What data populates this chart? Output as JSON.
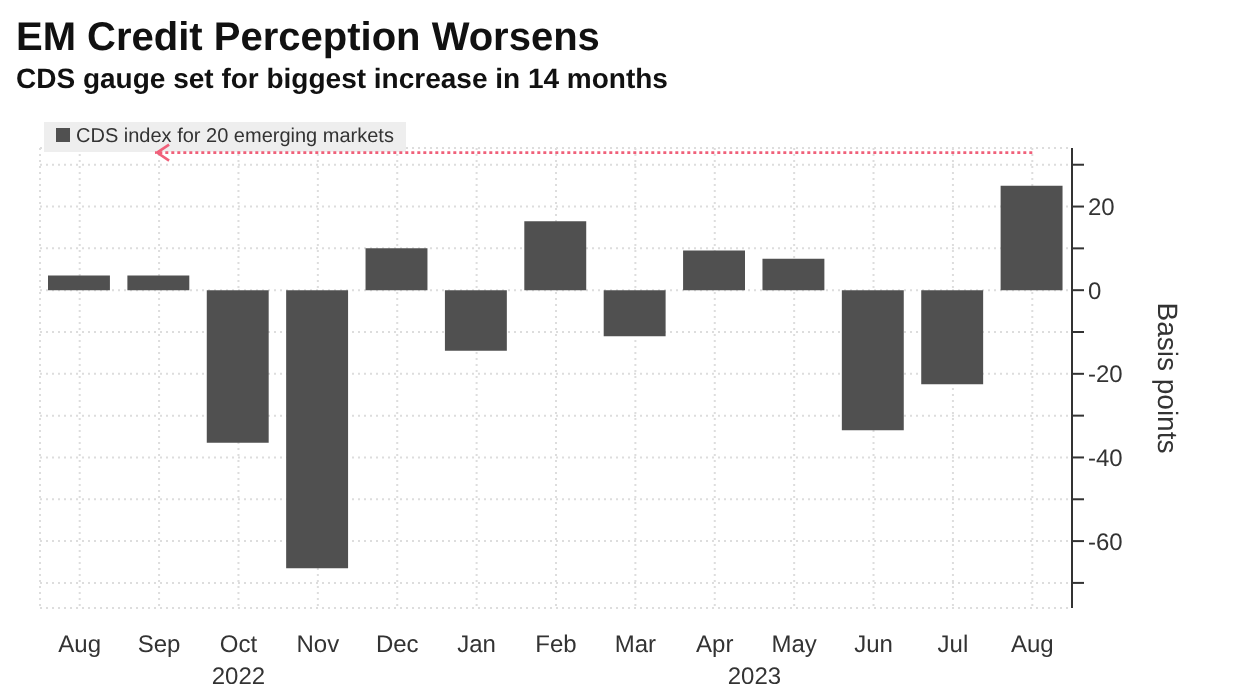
{
  "chart_data": {
    "type": "bar",
    "title": "EM Credit Perception Worsens",
    "subtitle": "CDS gauge set for biggest increase in 14 months",
    "categories": [
      "Aug",
      "Sep",
      "Oct",
      "Nov",
      "Dec",
      "Jan",
      "Feb",
      "Mar",
      "Apr",
      "May",
      "Jun",
      "Jul",
      "Aug"
    ],
    "series": [
      {
        "name": "CDS index for 20 emerging markets",
        "color": "#505050",
        "values": [
          3.5,
          3.5,
          -36.5,
          -66.5,
          10,
          -14.5,
          16.5,
          -11,
          9.5,
          7.5,
          -33.5,
          -22.5,
          25
        ]
      }
    ],
    "ylabel": "Basis points",
    "ylim": [
      -76,
      34
    ],
    "yticks": [
      {
        "value": -70,
        "label": null
      },
      -60,
      {
        "value": -50,
        "label": null
      },
      -40,
      {
        "value": -30,
        "label": null
      },
      -20,
      {
        "value": -10,
        "label": null
      },
      0,
      {
        "value": 10,
        "label": null
      },
      20,
      {
        "value": 30,
        "label": null
      }
    ],
    "annotations": [
      "2022",
      "2023"
    ],
    "grid": true,
    "legend": "top left"
  }
}
